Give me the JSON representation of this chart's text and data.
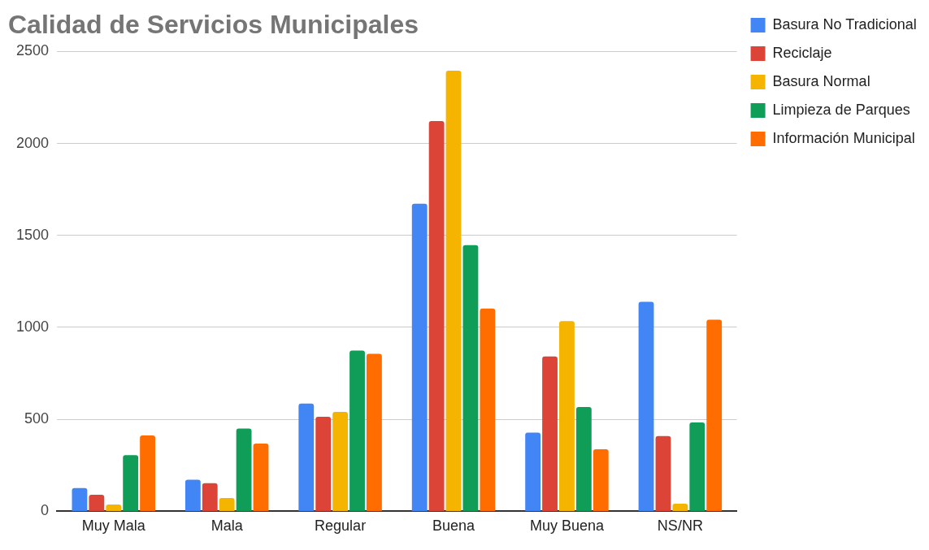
{
  "chart_data": {
    "type": "bar",
    "title": "Calidad de Servicios Municipales",
    "categories": [
      "Muy Mala",
      "Mala",
      "Regular",
      "Buena",
      "Muy Buena",
      "NS/NR"
    ],
    "series": [
      {
        "name": "Basura No Tradicional",
        "color": "#4285f4",
        "values": [
          127,
          172,
          586,
          1672,
          428,
          1139
        ]
      },
      {
        "name": "Reciclaje",
        "color": "#db4437",
        "values": [
          90,
          153,
          514,
          2122,
          842,
          409
        ]
      },
      {
        "name": "Basura Normal",
        "color": "#f4b400",
        "values": [
          37,
          72,
          541,
          2396,
          1034,
          42
        ]
      },
      {
        "name": "Limpieza de Parques",
        "color": "#0f9d58",
        "values": [
          305,
          450,
          874,
          1447,
          567,
          483
        ]
      },
      {
        "name": "Información Municipal",
        "color": "#ff6d00",
        "values": [
          413,
          368,
          856,
          1103,
          338,
          1042
        ]
      }
    ],
    "ylim": [
      0,
      2500
    ],
    "yticks": [
      0,
      500,
      1000,
      1500,
      2000,
      2500
    ],
    "grid": "y",
    "legend": "right"
  }
}
